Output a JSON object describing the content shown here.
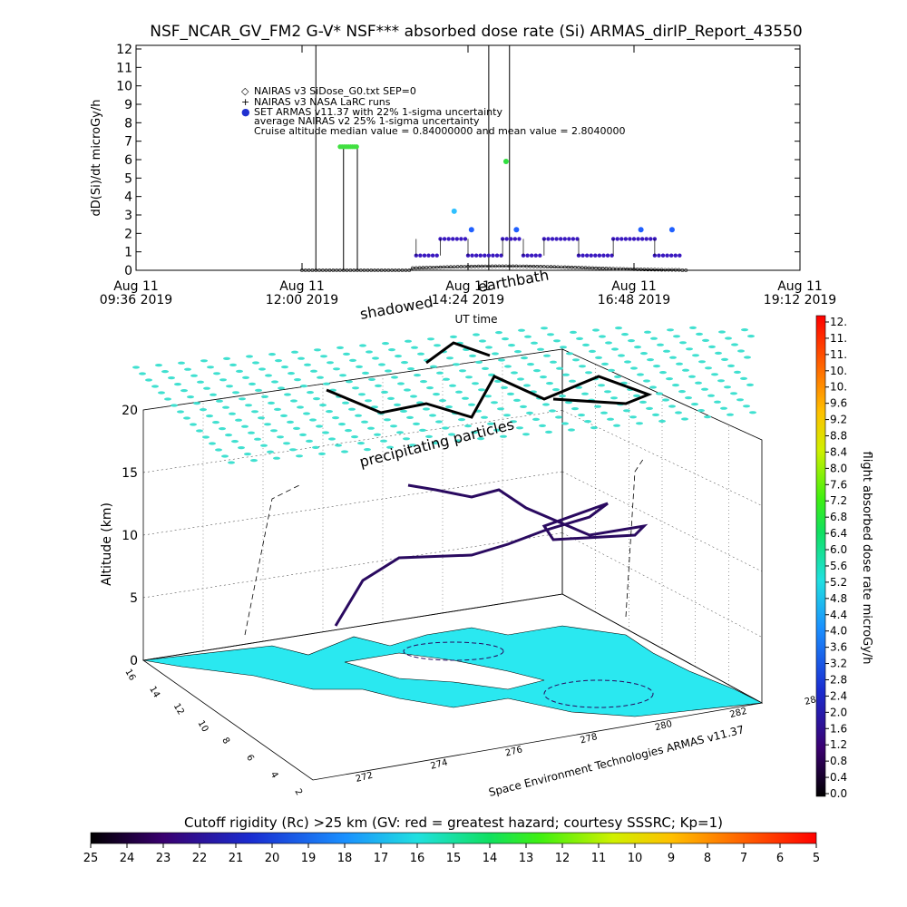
{
  "title": "NSF_NCAR_GV_FM2 G-V* NSF*** absorbed dose rate (Si) ARMAS_dirIP_Report_43550",
  "top_panel": {
    "ylabel": "dD(Si)/dt microGy/h",
    "xlabel": "UT time",
    "y_ticks": [
      0,
      1,
      2,
      3,
      4,
      5,
      6,
      7,
      8,
      9,
      10,
      11,
      12
    ],
    "x_ticks": [
      {
        "line1": "Aug 11",
        "line2": "09:36 2019"
      },
      {
        "line1": "Aug 11",
        "line2": "12:00 2019"
      },
      {
        "line1": "Aug 11",
        "line2": "14:24 2019"
      },
      {
        "line1": "Aug 11",
        "line2": "16:48 2019"
      },
      {
        "line1": "Aug 11",
        "line2": "19:12 2019"
      }
    ],
    "legend": [
      {
        "marker": "◇",
        "text": "NAIRAS v3 SiDose_G0.txt SEP=0"
      },
      {
        "marker": "+",
        "text": "NAIRAS v3 NASA LaRC runs"
      },
      {
        "marker": "●",
        "text": "SET ARMAS v11.37 with 22% 1-sigma uncertainty"
      },
      {
        "marker": "",
        "text": "average NAIRAS v2 25% 1-sigma uncertainty"
      },
      {
        "marker": "",
        "text": "Cruise altitude median value = 0.84000000 and mean value = 2.8040000"
      }
    ],
    "overlay_labels": [
      "shadowed",
      "earthbath"
    ]
  },
  "main_panel": {
    "ylabel": "Altitude (km)",
    "z_ticks": [
      "0",
      "5",
      "10",
      "15",
      "20"
    ],
    "lat_ticks": [
      "16",
      "14",
      "12",
      "10",
      "8",
      "6",
      "4",
      "2"
    ],
    "lon_ticks": [
      "272",
      "274",
      "276",
      "278",
      "280",
      "282",
      "284"
    ],
    "annotation": "precipitating particles",
    "credit": "Space Environment Technologies ARMAS v11.37"
  },
  "right_scale": {
    "label": "flight absorbed dose rate microGy/h",
    "ticks": [
      "12.",
      "11.",
      "11.",
      "10.",
      "10.",
      "9.6",
      "9.2",
      "8.8",
      "8.4",
      "8.0",
      "7.6",
      "7.2",
      "6.8",
      "6.4",
      "6.0",
      "5.6",
      "5.2",
      "4.8",
      "4.4",
      "4.0",
      "3.6",
      "3.2",
      "2.8",
      "2.4",
      "2.0",
      "1.6",
      "1.2",
      "0.8",
      "0.4",
      "0.0"
    ]
  },
  "bottom_scale": {
    "label": "Cutoff rigidity (Rc) >25 km (GV: red = greatest hazard; courtesy SSSRC; Kp=1)",
    "ticks": [
      "25",
      "24",
      "23",
      "22",
      "21",
      "20",
      "19",
      "18",
      "17",
      "16",
      "15",
      "14",
      "13",
      "12",
      "11",
      "10",
      "9",
      "8",
      "7",
      "6",
      "5"
    ]
  },
  "chart_data": {
    "type": "scatter",
    "title": "NSF_NCAR_GV_FM2 G-V* NSF*** absorbed dose rate (Si) ARMAS_dirIP_Report_43550",
    "xlabel": "UT time",
    "ylabel": "dD(Si)/dt microGy/h",
    "ylim": [
      0,
      12
    ],
    "xlim_hours": [
      9.6,
      19.2
    ],
    "cruise_median": 0.84,
    "cruise_mean": 2.804,
    "series": [
      {
        "name": "SET ARMAS v11.37 with 22% 1-sigma uncertainty",
        "x": [
          12.0,
          14.0,
          14.5,
          15.0,
          15.5,
          16.0,
          16.5,
          17.0,
          17.4
        ],
        "values": [
          6.7,
          1.7,
          0.8,
          1.7,
          0.8,
          1.7,
          0.8,
          1.7,
          0.8
        ]
      },
      {
        "name": "NAIRAS v3 SiDose_G0.txt SEP=0",
        "x": [
          13.6,
          14.5,
          15.5,
          16.5,
          17.5,
          17.6
        ],
        "values": [
          0.0,
          0.15,
          0.2,
          0.25,
          0.2,
          0.0
        ]
      }
    ]
  },
  "colors": {
    "cyan_markers": "#40e0d0",
    "land": "#2ae8f0",
    "flight_track": "#2a0a60",
    "accent_red": "#ff0000"
  }
}
